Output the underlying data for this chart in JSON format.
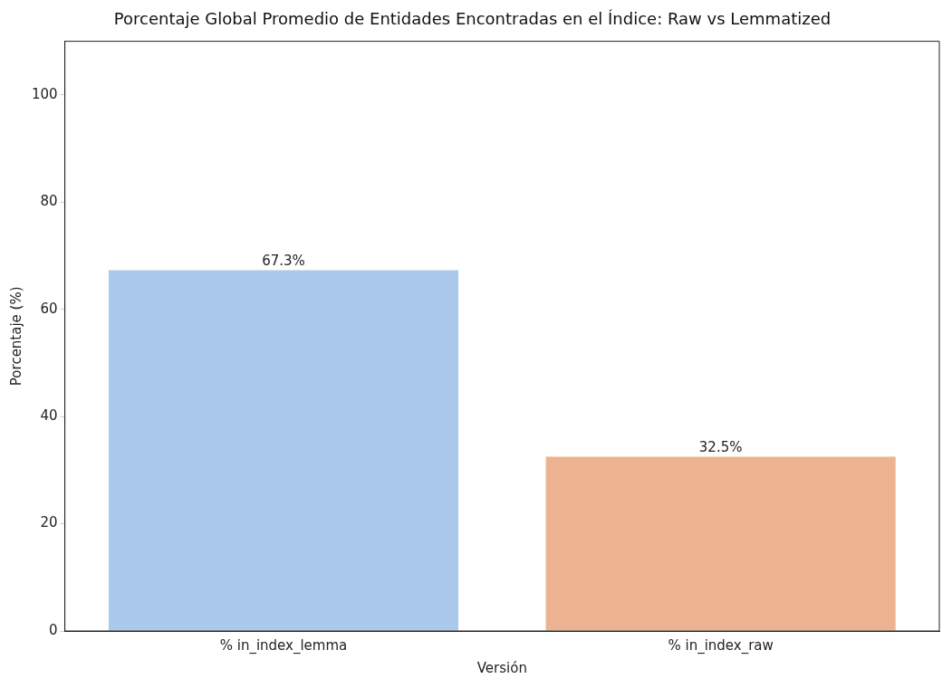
{
  "chart_data": {
    "type": "bar",
    "title": "Porcentaje Global Promedio de Entidades Encontradas en el Índice: Raw vs Lemmatized",
    "xlabel": "Versión",
    "ylabel": "Porcentaje (%)",
    "categories": [
      "% in_index_lemma",
      "% in_index_raw"
    ],
    "values": [
      67.3,
      32.5
    ],
    "colors": [
      "#abc9ea",
      "#edb391"
    ],
    "value_labels": [
      "67.3%",
      "32.5%"
    ],
    "ylim": [
      0,
      110
    ],
    "yticks": [
      0,
      20,
      40,
      60,
      80,
      100
    ],
    "grid": false,
    "legend": false
  }
}
